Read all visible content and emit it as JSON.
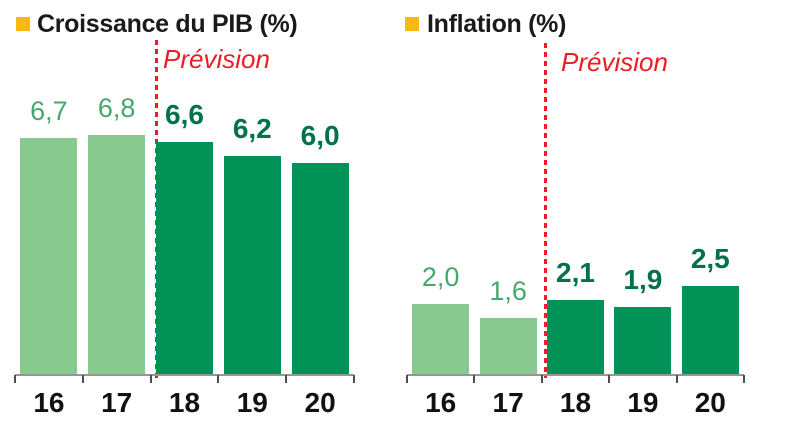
{
  "chart_data": [
    {
      "type": "bar",
      "title": "Croissance du PIB (%)",
      "forecast_label": "Prévision",
      "categories": [
        "16",
        "17",
        "18",
        "19",
        "20"
      ],
      "values": [
        6.7,
        6.8,
        6.6,
        6.2,
        6.0
      ],
      "value_labels": [
        "6,7",
        "6,8",
        "6,6",
        "6,2",
        "6,0"
      ],
      "forecast_start_index": 2,
      "unit": "%",
      "ylim": [
        0,
        9.5
      ],
      "grid": false,
      "legend": "none",
      "decimal_separator": ","
    },
    {
      "type": "bar",
      "title": "Inflation (%)",
      "forecast_label": "Prévision",
      "categories": [
        "16",
        "17",
        "18",
        "19",
        "20"
      ],
      "values": [
        2.0,
        1.6,
        2.1,
        1.9,
        2.5
      ],
      "value_labels": [
        "2,0",
        "1,6",
        "2,1",
        "1,9",
        "2,5"
      ],
      "forecast_start_index": 2,
      "unit": "%",
      "ylim": [
        0,
        9.5
      ],
      "grid": false,
      "legend": "none",
      "decimal_separator": ","
    }
  ],
  "colors": {
    "bullet": "#FDB813",
    "title_text": "#1A1A1A",
    "actual_bar": "#87C98E",
    "forecast_bar": "#019258",
    "actual_value_label": "#47A76C",
    "forecast_value_label": "#00714B",
    "forecast_line": "#ED1C24",
    "axis": "#969696",
    "tick": "#4D4D4D",
    "xlabel_text": "#111111"
  }
}
